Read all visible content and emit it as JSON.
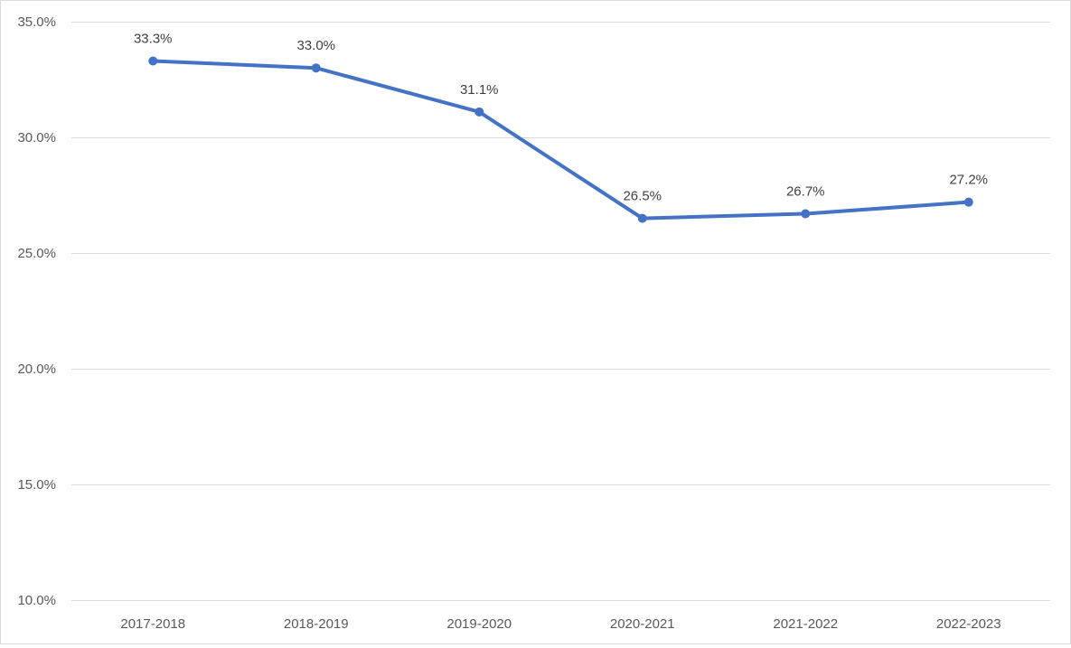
{
  "chart_data": {
    "type": "line",
    "title": "",
    "xlabel": "",
    "ylabel": "",
    "categories": [
      "2017-2018",
      "2018-2019",
      "2019-2020",
      "2020-2021",
      "2021-2022",
      "2022-2023"
    ],
    "series": [
      {
        "values": [
          33.3,
          33.0,
          31.1,
          26.5,
          26.7,
          27.2
        ],
        "data_labels": [
          "33.3%",
          "33.0%",
          "31.1%",
          "26.5%",
          "26.7%",
          "27.2%"
        ],
        "color": "#4472c4"
      }
    ],
    "ylim": [
      10,
      35
    ],
    "y_ticks": [
      10,
      15,
      20,
      25,
      30,
      35
    ],
    "y_tick_labels": [
      "10.0%",
      "15.0%",
      "20.0%",
      "25.0%",
      "30.0%",
      "35.0%"
    ],
    "grid": true,
    "legend": "none",
    "colors": {
      "line": "#4472c4",
      "grid": "#d9d9d9",
      "axis_text": "#595959",
      "label_text": "#404040"
    }
  }
}
